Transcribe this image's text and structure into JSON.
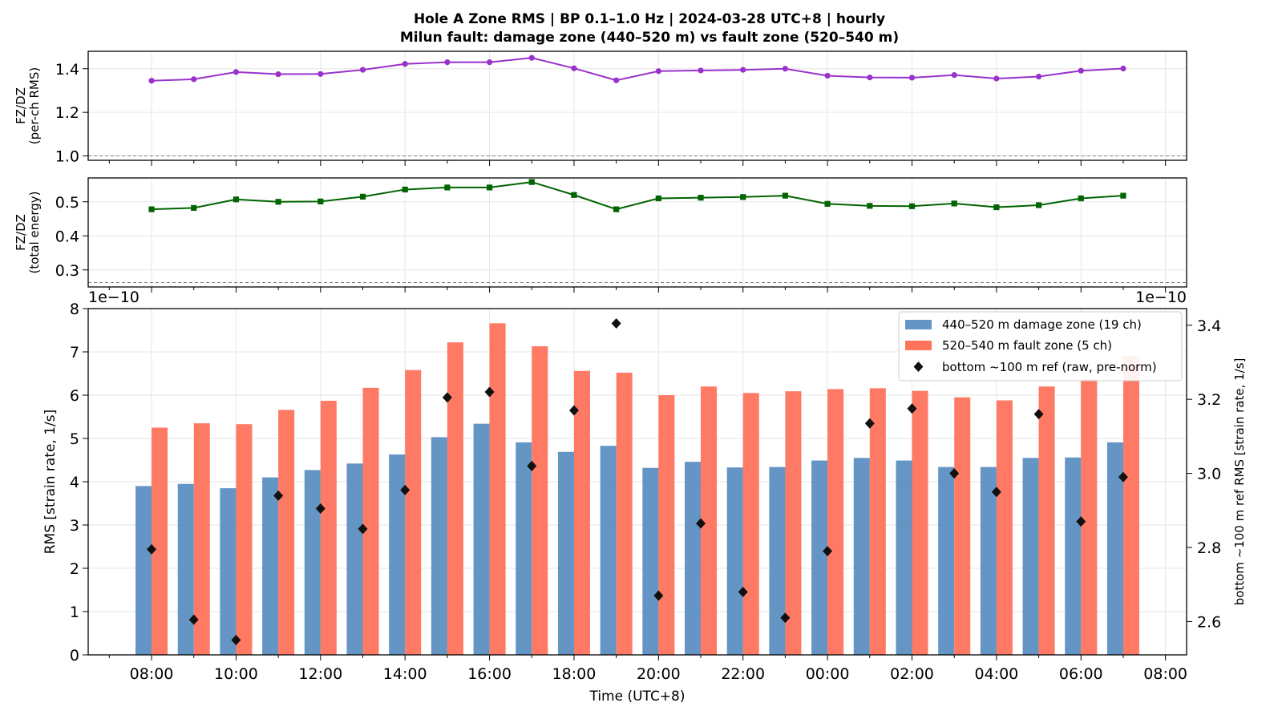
{
  "title": {
    "line1": "Hole A Zone RMS  |  BP 0.1–1.0 Hz  |  2024-03-28 UTC+8  |  hourly",
    "line2": "Milun fault: damage zone (440–520 m) vs fault zone (520–540 m)"
  },
  "chart_data": [
    {
      "type": "line",
      "ylabel_lines": [
        "FZ/DZ",
        "(per-ch RMS)"
      ],
      "ylim": [
        0.98,
        1.48
      ],
      "yticks": [
        1.0,
        1.2,
        1.4
      ],
      "ytick_labels": [
        "1.0",
        "1.2",
        "1.4"
      ],
      "reference_line": 1.0,
      "grid": true,
      "color": "#9932cc",
      "marker": "circle",
      "series": [
        {
          "values": [
            1.345,
            1.352,
            1.385,
            1.375,
            1.376,
            1.395,
            1.422,
            1.43,
            1.43,
            1.45,
            1.402,
            1.347,
            1.389,
            1.392,
            1.395,
            1.4,
            1.368,
            1.36,
            1.359,
            1.371,
            1.355,
            1.364,
            1.391,
            1.401
          ]
        }
      ]
    },
    {
      "type": "line",
      "ylabel_lines": [
        "FZ/DZ",
        "(total energy)"
      ],
      "ylim": [
        0.25,
        0.57
      ],
      "yticks": [
        0.3,
        0.4,
        0.5
      ],
      "ytick_labels": [
        "0.3",
        "0.4",
        "0.5"
      ],
      "reference_line": 0.263,
      "grid": true,
      "color": "#006400",
      "marker": "square",
      "series": [
        {
          "values": [
            0.478,
            0.482,
            0.507,
            0.5,
            0.501,
            0.515,
            0.536,
            0.542,
            0.542,
            0.558,
            0.52,
            0.478,
            0.51,
            0.512,
            0.514,
            0.518,
            0.494,
            0.488,
            0.487,
            0.495,
            0.484,
            0.49,
            0.51,
            0.518
          ]
        }
      ]
    },
    {
      "type": "bar",
      "xlabel": "Time (UTC+8)",
      "ylabel": "RMS  [strain rate, 1/s]",
      "y2label": "bottom ~100 m ref RMS  [strain rate, 1/s]",
      "offset_left": "1e−10",
      "offset_right": "1e−10",
      "ylim": [
        0,
        8
      ],
      "yticks": [
        0,
        1,
        2,
        3,
        4,
        5,
        6,
        7,
        8
      ],
      "ytick_labels": [
        "0",
        "1",
        "2",
        "3",
        "4",
        "5",
        "6",
        "7",
        "8"
      ],
      "y2lim": [
        2.51,
        3.445
      ],
      "y2ticks": [
        2.6,
        2.8,
        3.0,
        3.2,
        3.4
      ],
      "y2tick_labels": [
        "2.6",
        "2.8",
        "3.0",
        "3.2",
        "3.4"
      ],
      "x_hours": [
        0,
        1,
        2,
        3,
        4,
        5,
        6,
        7,
        8,
        9,
        10,
        11,
        12,
        13,
        14,
        15,
        16,
        17,
        18,
        19,
        20,
        21,
        22,
        23
      ],
      "xlim": [
        -1.5,
        24.5
      ],
      "xticks": [
        0,
        2,
        4,
        6,
        8,
        10,
        12,
        14,
        16,
        18,
        20,
        22,
        24
      ],
      "xtick_labels": [
        "08:00",
        "10:00",
        "12:00",
        "14:00",
        "16:00",
        "18:00",
        "20:00",
        "22:00",
        "00:00",
        "02:00",
        "04:00",
        "06:00",
        "08:00"
      ],
      "legend_position": "top-right",
      "grid": true,
      "series": [
        {
          "name": "440–520 m  damage zone (19 ch)",
          "color": "#4f86bd",
          "values": [
            3.9,
            3.95,
            3.85,
            4.1,
            4.27,
            4.42,
            4.63,
            5.03,
            5.34,
            4.91,
            4.69,
            4.83,
            4.32,
            4.46,
            4.33,
            4.34,
            4.49,
            4.55,
            4.49,
            4.34,
            4.34,
            4.55,
            4.56,
            4.91
          ]
        },
        {
          "name": "520–540 m  fault zone (5 ch)",
          "color": "#ff735c",
          "values": [
            5.25,
            5.35,
            5.33,
            5.66,
            5.87,
            6.17,
            6.58,
            7.22,
            7.66,
            7.13,
            6.56,
            6.52,
            6.0,
            6.2,
            6.05,
            6.09,
            6.14,
            6.16,
            6.1,
            5.95,
            5.88,
            6.2,
            6.37,
            6.9
          ]
        },
        {
          "name": "bottom ~100 m ref (raw, pre-norm)",
          "color": "#111111",
          "axis": "right",
          "values": [
            2.795,
            2.605,
            2.55,
            2.94,
            2.905,
            2.85,
            2.955,
            3.205,
            3.22,
            3.02,
            3.17,
            3.405,
            2.67,
            2.865,
            2.68,
            2.61,
            2.79,
            3.135,
            3.175,
            3.0,
            2.95,
            3.16,
            2.87,
            2.99
          ]
        }
      ]
    }
  ]
}
